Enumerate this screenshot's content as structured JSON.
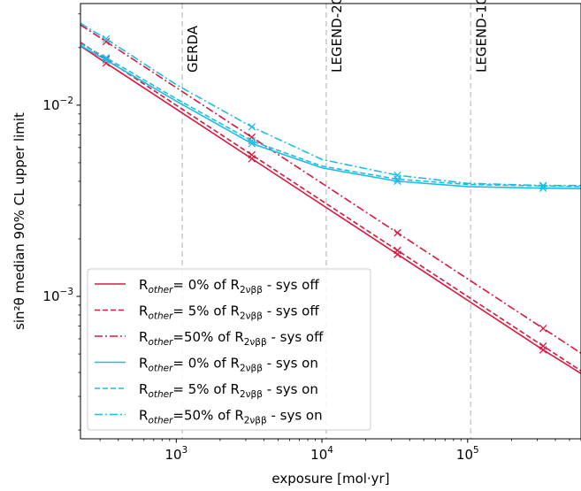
{
  "chart_data": {
    "type": "line",
    "xlabel": "exposure [mol·yr]",
    "ylabel": "sin²θ median 90% CL upper limit",
    "xscale": "log",
    "yscale": "log",
    "xlim": [
      220,
      600000
    ],
    "ylim": [
      0.00018,
      0.034
    ],
    "x_ticks": [
      {
        "value": 1000,
        "mant": "10",
        "exp": "3"
      },
      {
        "value": 10000,
        "mant": "10",
        "exp": "4"
      },
      {
        "value": 100000,
        "mant": "10",
        "exp": "5"
      }
    ],
    "y_ticks": [
      {
        "value": 0.001,
        "mant": "10",
        "exp": "−3"
      },
      {
        "value": 0.01,
        "mant": "10",
        "exp": "−2"
      }
    ],
    "vlines": [
      {
        "label": "GERDA",
        "x": 1100
      },
      {
        "label": "LEGEND-200",
        "x": 10700
      },
      {
        "label": "LEGEND-1000",
        "x": 105000
      }
    ],
    "grid": false,
    "legend_position": "lower-left",
    "colors": {
      "sys_off": "#d6193f",
      "sys_on": "#1bbde8",
      "vline": "#cccccc",
      "axis": "#000000"
    },
    "series": [
      {
        "legend": {
          "base": "R",
          "sub1": "other",
          "mid": "= 0%  of R",
          "sub2": "2νββ",
          "tail": " - sys off"
        },
        "color": "sys_off",
        "dash": "solid",
        "x": [
          220,
          330,
          3300,
          33000,
          330000,
          600000
        ],
        "y": [
          0.0204,
          0.0166,
          0.00525,
          0.00166,
          0.000525,
          0.000395
        ],
        "markers_x": [
          330,
          3300,
          33000,
          330000
        ],
        "markers_y": [
          0.0166,
          0.00525,
          0.00166,
          0.000525
        ]
      },
      {
        "legend": {
          "base": "R",
          "sub1": "other",
          "mid": "= 5%  of R",
          "sub2": "2νββ",
          "tail": " - sys off"
        },
        "color": "sys_off",
        "dash": "dashed",
        "x": [
          220,
          330,
          3300,
          33000,
          330000,
          600000
        ],
        "y": [
          0.0213,
          0.0174,
          0.0055,
          0.00174,
          0.00055,
          0.000408
        ],
        "markers_x": [
          330,
          3300,
          33000,
          330000
        ],
        "markers_y": [
          0.0174,
          0.0055,
          0.00174,
          0.00055
        ]
      },
      {
        "legend": {
          "base": "R",
          "sub1": "other",
          "mid": "=50% of R",
          "sub2": "2νββ",
          "tail": " - sys off"
        },
        "color": "sys_off",
        "dash": "dashdot",
        "x": [
          220,
          330,
          3300,
          33000,
          330000,
          600000
        ],
        "y": [
          0.0263,
          0.0215,
          0.0068,
          0.00215,
          0.00068,
          0.000505
        ],
        "markers_x": [
          330,
          3300,
          33000,
          330000
        ],
        "markers_y": [
          0.0215,
          0.0068,
          0.00215,
          0.00068
        ]
      },
      {
        "legend": {
          "base": "R",
          "sub1": "other",
          "mid": "= 0%  of R",
          "sub2": "2νββ",
          "tail": " - sys on"
        },
        "color": "sys_on",
        "dash": "solid",
        "x": [
          220,
          330,
          1000,
          3300,
          10000,
          33000,
          100000,
          330000,
          600000
        ],
        "y": [
          0.0205,
          0.0172,
          0.0105,
          0.0063,
          0.0047,
          0.004,
          0.00375,
          0.00368,
          0.00366
        ],
        "markers_x": [
          330,
          3300,
          33000,
          330000
        ],
        "markers_y": [
          0.0172,
          0.0063,
          0.004,
          0.00368
        ]
      },
      {
        "legend": {
          "base": "R",
          "sub1": "other",
          "mid": "= 5%  of R",
          "sub2": "2νββ",
          "tail": " - sys on"
        },
        "color": "sys_on",
        "dash": "dashed",
        "x": [
          220,
          330,
          1000,
          3300,
          10000,
          33000,
          100000,
          330000,
          600000
        ],
        "y": [
          0.021,
          0.0177,
          0.0108,
          0.0065,
          0.0048,
          0.0041,
          0.00385,
          0.00378,
          0.00375
        ],
        "markers_x": [
          330,
          3300,
          33000,
          330000
        ],
        "markers_y": [
          0.0177,
          0.0065,
          0.0041,
          0.00378
        ]
      },
      {
        "legend": {
          "base": "R",
          "sub1": "other",
          "mid": "=50% of R",
          "sub2": "2νββ",
          "tail": " - sys on"
        },
        "color": "sys_on",
        "dash": "dashdot",
        "x": [
          220,
          330,
          1000,
          3300,
          10000,
          33000,
          100000,
          330000,
          600000
        ],
        "y": [
          0.0268,
          0.0222,
          0.0128,
          0.0077,
          0.0052,
          0.0043,
          0.0039,
          0.0038,
          0.0038
        ],
        "markers_x": [
          330,
          3300,
          33000,
          330000
        ],
        "markers_y": [
          0.0222,
          0.0077,
          0.0043,
          0.0038
        ]
      }
    ]
  }
}
